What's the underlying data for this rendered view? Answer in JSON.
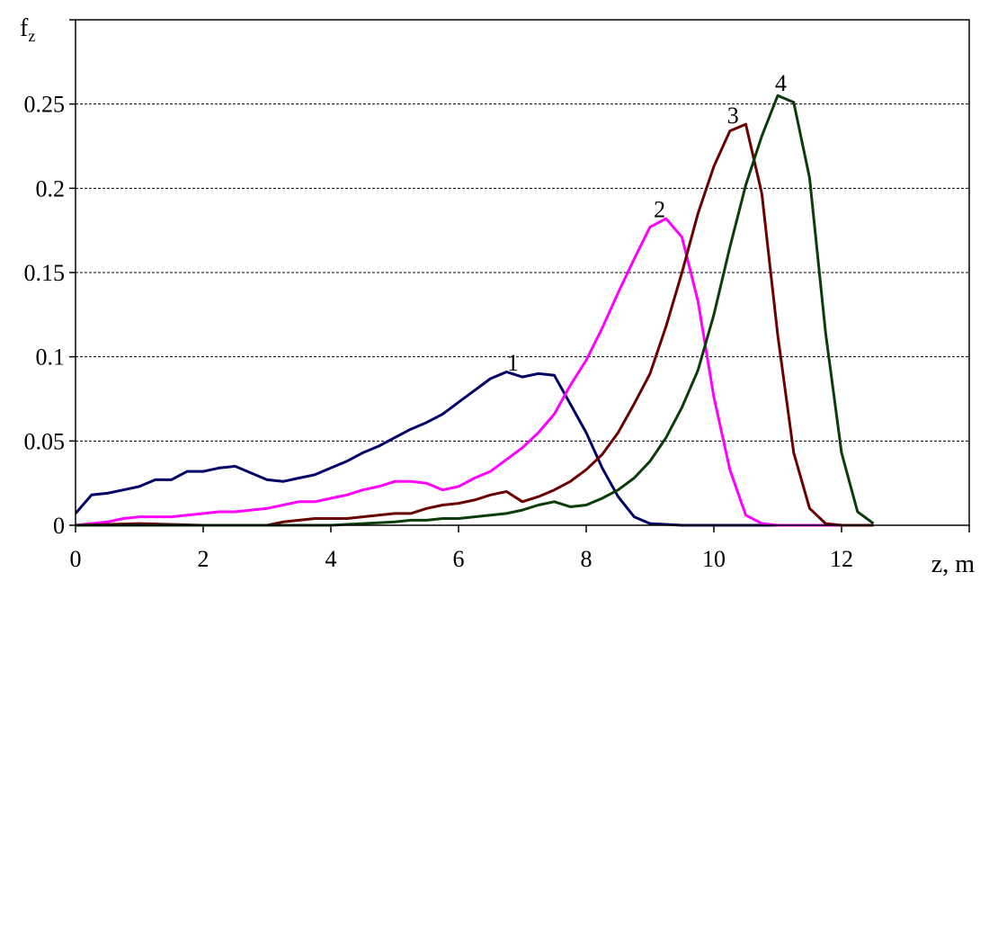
{
  "chart_data": {
    "type": "line",
    "title": "",
    "xlabel": "z, m",
    "ylabel_main": "f",
    "ylabel_sub": "z",
    "xlim": [
      0,
      14
    ],
    "ylim": [
      0,
      0.3
    ],
    "xticks": [
      0,
      2,
      4,
      6,
      8,
      10,
      12,
      14
    ],
    "xtick_labels": [
      "0",
      "2",
      "4",
      "6",
      "8",
      "10",
      "12",
      ""
    ],
    "yticks": [
      0,
      0.05,
      0.1,
      0.15,
      0.2,
      0.25,
      0.3
    ],
    "ytick_labels": [
      "0",
      "0.05",
      "0.1",
      "0.15",
      "0.2",
      "0.25",
      ""
    ],
    "grid": "horizontal dashed",
    "legend": "none",
    "series": [
      {
        "label": "1",
        "color": "#000066",
        "label_at": [
          6.85,
          0.096
        ],
        "points": [
          [
            0,
            0.007
          ],
          [
            0.25,
            0.018
          ],
          [
            0.5,
            0.019
          ],
          [
            0.75,
            0.021
          ],
          [
            1,
            0.023
          ],
          [
            1.25,
            0.027
          ],
          [
            1.5,
            0.027
          ],
          [
            1.75,
            0.032
          ],
          [
            2,
            0.032
          ],
          [
            2.25,
            0.034
          ],
          [
            2.5,
            0.035
          ],
          [
            2.75,
            0.031
          ],
          [
            3,
            0.027
          ],
          [
            3.25,
            0.026
          ],
          [
            3.5,
            0.028
          ],
          [
            3.75,
            0.03
          ],
          [
            4,
            0.034
          ],
          [
            4.25,
            0.038
          ],
          [
            4.5,
            0.043
          ],
          [
            4.75,
            0.047
          ],
          [
            5,
            0.052
          ],
          [
            5.25,
            0.057
          ],
          [
            5.5,
            0.061
          ],
          [
            5.75,
            0.066
          ],
          [
            6,
            0.073
          ],
          [
            6.25,
            0.08
          ],
          [
            6.5,
            0.087
          ],
          [
            6.75,
            0.091
          ],
          [
            7,
            0.088
          ],
          [
            7.25,
            0.09
          ],
          [
            7.5,
            0.089
          ],
          [
            7.75,
            0.072
          ],
          [
            8,
            0.055
          ],
          [
            8.25,
            0.034
          ],
          [
            8.5,
            0.017
          ],
          [
            8.75,
            0.005
          ],
          [
            9,
            0.001
          ],
          [
            9.5,
            0.0
          ],
          [
            12,
            0.0
          ]
        ]
      },
      {
        "label": "2",
        "color": "#ff00ff",
        "label_at": [
          9.15,
          0.187
        ],
        "points": [
          [
            0,
            0.0
          ],
          [
            0.25,
            0.001
          ],
          [
            0.5,
            0.002
          ],
          [
            0.75,
            0.004
          ],
          [
            1,
            0.005
          ],
          [
            1.25,
            0.005
          ],
          [
            1.5,
            0.005
          ],
          [
            1.75,
            0.006
          ],
          [
            2,
            0.007
          ],
          [
            2.25,
            0.008
          ],
          [
            2.5,
            0.008
          ],
          [
            2.75,
            0.009
          ],
          [
            3,
            0.01
          ],
          [
            3.25,
            0.012
          ],
          [
            3.5,
            0.014
          ],
          [
            3.75,
            0.014
          ],
          [
            4,
            0.016
          ],
          [
            4.25,
            0.018
          ],
          [
            4.5,
            0.021
          ],
          [
            4.75,
            0.023
          ],
          [
            5,
            0.026
          ],
          [
            5.25,
            0.026
          ],
          [
            5.5,
            0.025
          ],
          [
            5.75,
            0.021
          ],
          [
            6,
            0.023
          ],
          [
            6.25,
            0.028
          ],
          [
            6.5,
            0.032
          ],
          [
            6.75,
            0.039
          ],
          [
            7,
            0.046
          ],
          [
            7.25,
            0.055
          ],
          [
            7.5,
            0.066
          ],
          [
            7.75,
            0.083
          ],
          [
            8,
            0.098
          ],
          [
            8.25,
            0.117
          ],
          [
            8.5,
            0.138
          ],
          [
            8.75,
            0.158
          ],
          [
            9,
            0.177
          ],
          [
            9.25,
            0.182
          ],
          [
            9.5,
            0.171
          ],
          [
            9.75,
            0.133
          ],
          [
            10,
            0.076
          ],
          [
            10.25,
            0.033
          ],
          [
            10.5,
            0.006
          ],
          [
            10.75,
            0.001
          ],
          [
            11,
            0.0
          ],
          [
            12,
            0.0
          ]
        ]
      },
      {
        "label": "3",
        "color": "#6b0000",
        "label_at": [
          10.3,
          0.243
        ],
        "points": [
          [
            0,
            0.0
          ],
          [
            1,
            0.001
          ],
          [
            2,
            0.0
          ],
          [
            3,
            0.0
          ],
          [
            3.25,
            0.002
          ],
          [
            3.5,
            0.003
          ],
          [
            3.75,
            0.004
          ],
          [
            4,
            0.004
          ],
          [
            4.25,
            0.004
          ],
          [
            4.5,
            0.005
          ],
          [
            4.75,
            0.006
          ],
          [
            5,
            0.007
          ],
          [
            5.25,
            0.007
          ],
          [
            5.5,
            0.01
          ],
          [
            5.75,
            0.012
          ],
          [
            6,
            0.013
          ],
          [
            6.25,
            0.015
          ],
          [
            6.5,
            0.018
          ],
          [
            6.75,
            0.02
          ],
          [
            7,
            0.014
          ],
          [
            7.25,
            0.017
          ],
          [
            7.5,
            0.021
          ],
          [
            7.75,
            0.026
          ],
          [
            8,
            0.033
          ],
          [
            8.25,
            0.042
          ],
          [
            8.5,
            0.055
          ],
          [
            8.75,
            0.072
          ],
          [
            9,
            0.09
          ],
          [
            9.25,
            0.118
          ],
          [
            9.5,
            0.15
          ],
          [
            9.75,
            0.185
          ],
          [
            10,
            0.213
          ],
          [
            10.25,
            0.234
          ],
          [
            10.5,
            0.238
          ],
          [
            10.75,
            0.197
          ],
          [
            11,
            0.113
          ],
          [
            11.25,
            0.043
          ],
          [
            11.5,
            0.01
          ],
          [
            11.75,
            0.001
          ],
          [
            12,
            0.0
          ],
          [
            12.5,
            0.0
          ]
        ]
      },
      {
        "label": "4",
        "color": "#0a3d0a",
        "label_at": [
          11.05,
          0.262
        ],
        "points": [
          [
            0,
            0.0
          ],
          [
            2,
            0.0
          ],
          [
            4,
            0.0
          ],
          [
            4.5,
            0.001
          ],
          [
            5,
            0.002
          ],
          [
            5.25,
            0.003
          ],
          [
            5.5,
            0.003
          ],
          [
            5.75,
            0.004
          ],
          [
            6,
            0.004
          ],
          [
            6.25,
            0.005
          ],
          [
            6.5,
            0.006
          ],
          [
            6.75,
            0.007
          ],
          [
            7,
            0.009
          ],
          [
            7.25,
            0.012
          ],
          [
            7.5,
            0.014
          ],
          [
            7.75,
            0.011
          ],
          [
            8,
            0.012
          ],
          [
            8.25,
            0.016
          ],
          [
            8.5,
            0.021
          ],
          [
            8.75,
            0.028
          ],
          [
            9,
            0.038
          ],
          [
            9.25,
            0.052
          ],
          [
            9.5,
            0.07
          ],
          [
            9.75,
            0.092
          ],
          [
            10,
            0.125
          ],
          [
            10.25,
            0.165
          ],
          [
            10.5,
            0.202
          ],
          [
            10.75,
            0.231
          ],
          [
            11,
            0.255
          ],
          [
            11.25,
            0.251
          ],
          [
            11.5,
            0.206
          ],
          [
            11.75,
            0.114
          ],
          [
            12,
            0.043
          ],
          [
            12.25,
            0.008
          ],
          [
            12.5,
            0.001
          ]
        ]
      }
    ]
  }
}
